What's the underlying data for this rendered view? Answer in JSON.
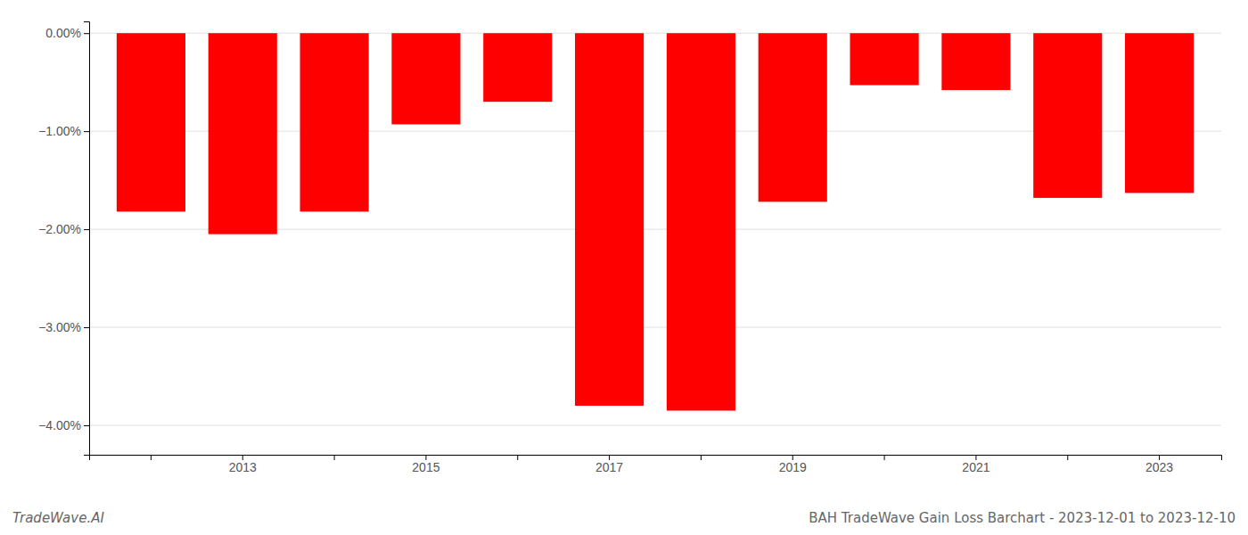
{
  "chart_data": {
    "type": "bar",
    "title": "BAH TradeWave Gain Loss Barchart - 2023-12-01 to 2023-12-10",
    "annotations": [
      "TradeWave.AI"
    ],
    "categories": [
      null,
      "2013",
      null,
      "2015",
      null,
      "2017",
      null,
      "2019",
      null,
      "2021",
      null,
      "2023"
    ],
    "values": [
      -1.82,
      -2.05,
      -1.82,
      -0.93,
      -0.7,
      -3.8,
      -3.85,
      -1.72,
      -0.53,
      -0.58,
      -1.68,
      -1.63
    ],
    "color": "#ff0000",
    "ylim": [
      -4.3,
      0.12
    ],
    "yticks": [
      {
        "value": 0.0,
        "label": "0.00%"
      },
      {
        "value": -1.0,
        "label": "−1.00%"
      },
      {
        "value": -2.0,
        "label": "−2.00%"
      },
      {
        "value": -3.0,
        "label": "−3.00%"
      },
      {
        "value": -4.0,
        "label": "−4.00%"
      }
    ],
    "grid": true
  }
}
